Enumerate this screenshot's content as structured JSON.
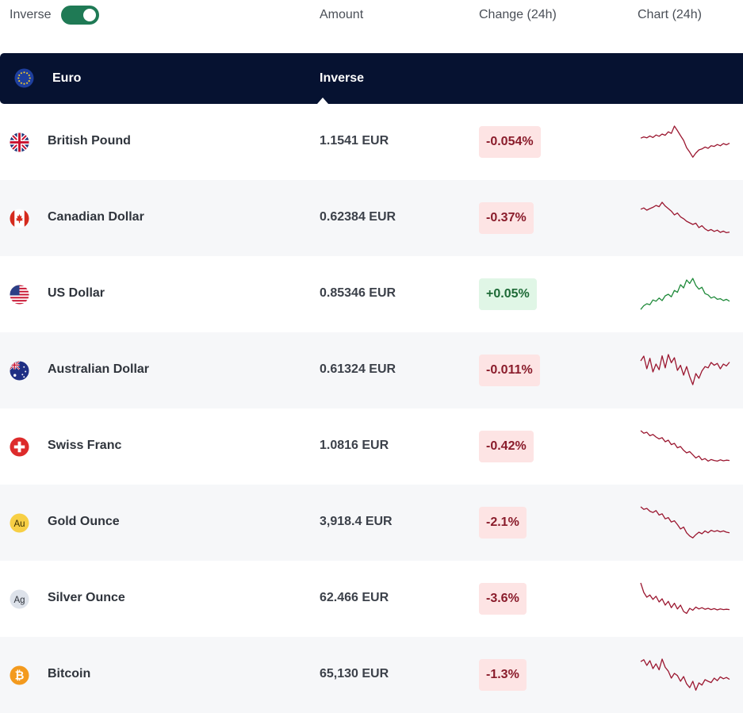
{
  "header": {
    "inverse_label": "Inverse",
    "toggle_on": true,
    "amount_col": "Amount",
    "change_col": "Change (24h)",
    "chart_col": "Chart (24h)"
  },
  "base": {
    "name": "Euro",
    "inverse_label": "Inverse",
    "flag_icon": "eu-flag-icon"
  },
  "colors": {
    "positive": "#1f8a3a",
    "negative": "#9b1730",
    "base_bar": "#061231"
  },
  "rows": [
    {
      "name": "British Pound",
      "amount": "1.1541 EUR",
      "change": "-0.054%",
      "direction": "down",
      "icon": "uk-flag-icon",
      "chart": [
        0.62,
        0.66,
        0.63,
        0.69,
        0.64,
        0.72,
        0.68,
        0.75,
        0.71,
        0.82,
        0.77,
        1.0,
        0.86,
        0.7,
        0.55,
        0.32,
        0.18,
        0.02,
        0.15,
        0.25,
        0.28,
        0.34,
        0.3,
        0.38,
        0.36,
        0.42,
        0.38,
        0.45,
        0.41,
        0.46
      ]
    },
    {
      "name": "Canadian Dollar",
      "amount": "0.62384 EUR",
      "change": "-0.37%",
      "direction": "down",
      "icon": "canada-flag-icon",
      "chart": [
        0.78,
        0.82,
        0.75,
        0.8,
        0.84,
        0.9,
        0.86,
        1.0,
        0.88,
        0.8,
        0.72,
        0.6,
        0.66,
        0.54,
        0.48,
        0.4,
        0.35,
        0.3,
        0.34,
        0.2,
        0.26,
        0.16,
        0.1,
        0.14,
        0.08,
        0.12,
        0.05,
        0.09,
        0.04,
        0.06
      ]
    },
    {
      "name": "US Dollar",
      "amount": "0.85346 EUR",
      "change": "+0.05%",
      "direction": "up",
      "icon": "us-flag-icon",
      "chart": [
        0.02,
        0.14,
        0.2,
        0.17,
        0.32,
        0.28,
        0.38,
        0.3,
        0.45,
        0.5,
        0.42,
        0.62,
        0.56,
        0.8,
        0.7,
        0.95,
        0.84,
        1.0,
        0.78,
        0.66,
        0.72,
        0.52,
        0.48,
        0.38,
        0.42,
        0.34,
        0.36,
        0.3,
        0.34,
        0.28
      ]
    },
    {
      "name": "Australian Dollar",
      "amount": "0.61324 EUR",
      "change": "-0.011%",
      "direction": "down",
      "icon": "australia-flag-icon",
      "chart": [
        0.8,
        0.95,
        0.55,
        0.88,
        0.45,
        0.7,
        0.52,
        0.96,
        0.58,
        1.0,
        0.74,
        0.9,
        0.5,
        0.66,
        0.35,
        0.62,
        0.3,
        0.05,
        0.4,
        0.25,
        0.48,
        0.62,
        0.58,
        0.75,
        0.66,
        0.72,
        0.55,
        0.7,
        0.64,
        0.76
      ]
    },
    {
      "name": "Swiss Franc",
      "amount": "1.0816 EUR",
      "change": "-0.42%",
      "direction": "down",
      "icon": "swiss-flag-icon",
      "chart": [
        1.0,
        0.92,
        0.95,
        0.84,
        0.88,
        0.8,
        0.74,
        0.78,
        0.65,
        0.7,
        0.56,
        0.6,
        0.46,
        0.5,
        0.38,
        0.3,
        0.34,
        0.24,
        0.14,
        0.2,
        0.08,
        0.12,
        0.04,
        0.09,
        0.06,
        0.04,
        0.08,
        0.05,
        0.07,
        0.06
      ]
    },
    {
      "name": "Gold Ounce",
      "amount": "3,918.4 EUR",
      "change": "-2.1%",
      "direction": "down",
      "icon": "gold-ounce-icon",
      "chart": [
        1.0,
        0.92,
        0.95,
        0.86,
        0.82,
        0.88,
        0.74,
        0.78,
        0.62,
        0.66,
        0.52,
        0.56,
        0.44,
        0.3,
        0.36,
        0.18,
        0.08,
        0.02,
        0.12,
        0.2,
        0.15,
        0.24,
        0.18,
        0.26,
        0.22,
        0.25,
        0.21,
        0.24,
        0.2,
        0.18
      ]
    },
    {
      "name": "Silver Ounce",
      "amount": "62.466 EUR",
      "change": "-3.6%",
      "direction": "down",
      "icon": "silver-ounce-icon",
      "chart": [
        1.0,
        0.7,
        0.55,
        0.62,
        0.48,
        0.58,
        0.4,
        0.5,
        0.3,
        0.42,
        0.22,
        0.36,
        0.18,
        0.3,
        0.1,
        0.04,
        0.2,
        0.14,
        0.24,
        0.18,
        0.22,
        0.17,
        0.2,
        0.16,
        0.19,
        0.15,
        0.18,
        0.16,
        0.17,
        0.16
      ]
    },
    {
      "name": "Bitcoin",
      "amount": "65,130 EUR",
      "change": "-1.3%",
      "direction": "down",
      "icon": "bitcoin-icon",
      "chart": [
        0.92,
        0.98,
        0.8,
        0.95,
        0.7,
        0.85,
        0.66,
        1.0,
        0.74,
        0.62,
        0.4,
        0.55,
        0.48,
        0.3,
        0.45,
        0.22,
        0.1,
        0.3,
        0.02,
        0.25,
        0.18,
        0.35,
        0.3,
        0.26,
        0.4,
        0.32,
        0.44,
        0.38,
        0.42,
        0.36
      ]
    }
  ]
}
